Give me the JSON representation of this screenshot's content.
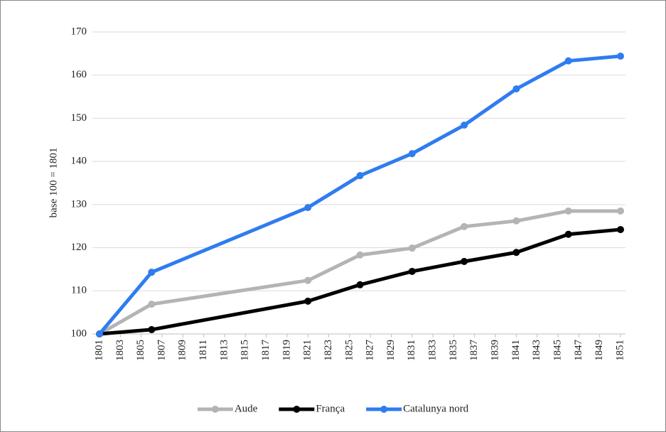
{
  "chart_data": {
    "type": "line",
    "y_axis_label": "base 100 = 1801",
    "x": [
      1801,
      1806,
      1821,
      1826,
      1831,
      1836,
      1841,
      1846,
      1851
    ],
    "series": [
      {
        "name": "Aude",
        "color": "#b4b4b4",
        "values": [
          100,
          106.9,
          112.4,
          118.3,
          119.9,
          124.9,
          126.2,
          128.5,
          128.5
        ]
      },
      {
        "name": "França",
        "color": "#000000",
        "values": [
          100,
          101,
          107.6,
          111.4,
          114.5,
          116.8,
          118.9,
          123.1,
          124.2
        ]
      },
      {
        "name": "Catalunya nord",
        "color": "#2f7cf0",
        "values": [
          100,
          114.3,
          129.3,
          136.7,
          141.8,
          148.4,
          156.8,
          163.3,
          164.4
        ]
      }
    ],
    "xlim": [
      1801,
      1851
    ],
    "xticks": [
      1801,
      1803,
      1805,
      1807,
      1809,
      1811,
      1813,
      1815,
      1817,
      1819,
      1821,
      1823,
      1825,
      1827,
      1829,
      1831,
      1833,
      1835,
      1837,
      1839,
      1841,
      1843,
      1845,
      1847,
      1849,
      1851
    ],
    "ylim": [
      100,
      170
    ],
    "yticks": [
      100,
      110,
      120,
      130,
      140,
      150,
      160,
      170
    ],
    "grid": true,
    "legend": "bottom"
  }
}
